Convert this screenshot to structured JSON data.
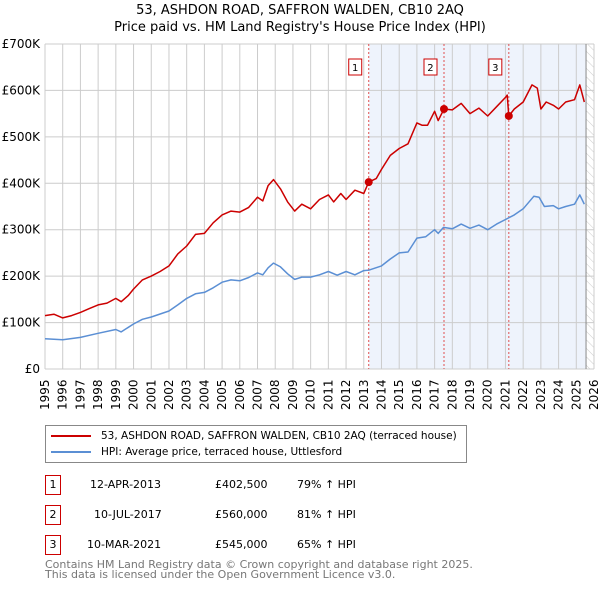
{
  "chart_data": {
    "type": "line",
    "title": "53, ASHDON ROAD, SAFFRON WALDEN, CB10 2AQ",
    "subtitle": "Price paid vs. HM Land Registry's House Price Index (HPI)",
    "xlim": [
      1995,
      2026
    ],
    "ylim": [
      0,
      700000
    ],
    "x_ticks": [
      "1995",
      "1996",
      "1997",
      "1998",
      "1999",
      "2000",
      "2001",
      "2002",
      "2003",
      "2004",
      "2005",
      "2006",
      "2007",
      "2008",
      "2009",
      "2010",
      "2011",
      "2012",
      "2013",
      "2014",
      "2015",
      "2016",
      "2017",
      "2018",
      "2019",
      "2020",
      "2021",
      "2022",
      "2023",
      "2024",
      "2025",
      "2026"
    ],
    "y_ticks": [
      {
        "value": 0,
        "label": "£0"
      },
      {
        "value": 100000,
        "label": "£100K"
      },
      {
        "value": 200000,
        "label": "£200K"
      },
      {
        "value": 300000,
        "label": "£300K"
      },
      {
        "value": 400000,
        "label": "£400K"
      },
      {
        "value": 500000,
        "label": "£500K"
      },
      {
        "value": 600000,
        "label": "£600K"
      },
      {
        "value": 700000,
        "label": "£700K"
      }
    ],
    "grid": true,
    "series": [
      {
        "name": "53, ASHDON ROAD, SAFFRON WALDEN, CB10 2AQ (terraced house)",
        "color": "#cc0000",
        "x": [
          1995,
          1995.5,
          1996,
          1996.5,
          1997,
          1997.5,
          1998,
          1998.5,
          1999,
          1999.3,
          1999.7,
          2000,
          2000.5,
          2001,
          2001.5,
          2002,
          2002.5,
          2003,
          2003.5,
          2004,
          2004.5,
          2005,
          2005.5,
          2006,
          2006.5,
          2007,
          2007.3,
          2007.6,
          2007.9,
          2008.3,
          2008.7,
          2009.1,
          2009.5,
          2010,
          2010.5,
          2011,
          2011.3,
          2011.7,
          2012,
          2012.5,
          2013,
          2013.28,
          2013.7,
          2014,
          2014.5,
          2015,
          2015.5,
          2016,
          2016.3,
          2016.6,
          2017,
          2017.2,
          2017.53,
          2018,
          2018.5,
          2019,
          2019.5,
          2020,
          2020.5,
          2021,
          2021.1,
          2021.19,
          2021.5,
          2022,
          2022.5,
          2022.8,
          2023,
          2023.3,
          2023.7,
          2024,
          2024.4,
          2024.9,
          2025.2,
          2025.45
        ],
        "y": [
          115000,
          118000,
          110000,
          115000,
          122000,
          130000,
          138000,
          142000,
          152000,
          145000,
          158000,
          172000,
          192000,
          200000,
          210000,
          222000,
          248000,
          265000,
          290000,
          292000,
          315000,
          332000,
          340000,
          338000,
          348000,
          370000,
          362000,
          395000,
          408000,
          388000,
          360000,
          340000,
          355000,
          345000,
          365000,
          375000,
          360000,
          378000,
          365000,
          385000,
          378000,
          402500,
          410000,
          430000,
          460000,
          475000,
          485000,
          530000,
          525000,
          525000,
          555000,
          535000,
          560000,
          558000,
          572000,
          550000,
          562000,
          545000,
          565000,
          585000,
          590000,
          545000,
          560000,
          575000,
          612000,
          605000,
          560000,
          575000,
          568000,
          560000,
          575000,
          580000,
          612000,
          575000
        ]
      },
      {
        "name": "HPI: Average price, terraced house, Uttlesford",
        "color": "#5b8fd4",
        "x": [
          1995,
          1996,
          1997,
          1998,
          1999,
          1999.3,
          2000,
          2000.5,
          2001,
          2002,
          2002.5,
          2003,
          2003.5,
          2004,
          2004.5,
          2005,
          2005.5,
          2006,
          2006.5,
          2007,
          2007.3,
          2007.6,
          2007.9,
          2008.3,
          2008.7,
          2009.1,
          2009.5,
          2010,
          2010.5,
          2011,
          2011.5,
          2012,
          2012.5,
          2013,
          2013.3,
          2014,
          2014.5,
          2015,
          2015.5,
          2016,
          2016.5,
          2017,
          2017.2,
          2017.5,
          2018,
          2018.5,
          2019,
          2019.5,
          2020,
          2020.5,
          2021,
          2021.5,
          2022,
          2022.6,
          2022.9,
          2023.2,
          2023.7,
          2024,
          2024.4,
          2024.9,
          2025.2,
          2025.45
        ],
        "y": [
          65000,
          63000,
          68000,
          77000,
          85000,
          80000,
          97000,
          107000,
          112000,
          125000,
          138000,
          152000,
          162000,
          165000,
          175000,
          187000,
          192000,
          190000,
          197000,
          207000,
          203000,
          218000,
          228000,
          220000,
          205000,
          193000,
          198000,
          198000,
          203000,
          210000,
          202000,
          210000,
          203000,
          212000,
          213000,
          222000,
          237000,
          250000,
          252000,
          282000,
          285000,
          300000,
          292000,
          305000,
          302000,
          312000,
          303000,
          310000,
          300000,
          312000,
          322000,
          332000,
          345000,
          372000,
          370000,
          350000,
          352000,
          345000,
          350000,
          355000,
          375000,
          355000
        ]
      }
    ],
    "sales": [
      {
        "label": "1",
        "x": 2013.28,
        "price": 402500,
        "date": "12-APR-2013",
        "price_text": "£402,500",
        "hpi_text": "79% ↑ HPI"
      },
      {
        "label": "2",
        "x": 2017.53,
        "price": 560000,
        "date": "10-JUL-2017",
        "price_text": "£560,000",
        "hpi_text": "81% ↑ HPI"
      },
      {
        "label": "3",
        "x": 2021.19,
        "price": 545000,
        "date": "10-MAR-2021",
        "price_text": "£545,000",
        "hpi_text": "65% ↑ HPI"
      }
    ],
    "shaded_from": 2013.28,
    "data_end": 2025.55,
    "legend_position": "bottom"
  },
  "footer": {
    "line1": "Contains HM Land Registry data © Crown copyright and database right 2025.",
    "line2": "This data is licensed under the Open Government Licence v3.0."
  }
}
